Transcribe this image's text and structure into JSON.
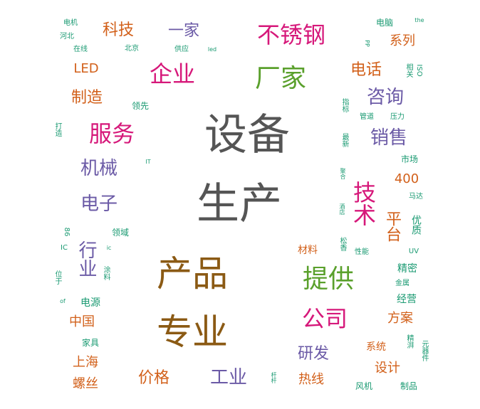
{
  "words": {
    "shebei": "设备",
    "shengchan": "生产",
    "chanpin": "产品",
    "zhuanye": "专业",
    "tigong": "提供",
    "changjia": "厂家",
    "buxiugang": "不锈钢",
    "qiye": "企业",
    "fuwu": "服务",
    "gongsi": "公司",
    "jishu": "技术",
    "xiaoshou": "销售",
    "jixie": "机械",
    "dianzi": "电子",
    "zixun": "咨询",
    "hangye": "行业",
    "yanfa": "研发",
    "gongye": "工业",
    "jiage": "价格",
    "keji": "科技",
    "yijia": "一家",
    "dianhua": "电话",
    "zhizao": "制造",
    "pingtai": "平台",
    "sheji": "设计",
    "rexian": "热线",
    "zhongguo": "中国",
    "shanghai": "上海",
    "luosi": "螺丝",
    "xilie": "系列",
    "xitong": "系统",
    "fangan": "方案",
    "jingying": "经营",
    "jingmi": "精密",
    "cailiao": "材料",
    "led_big": "LED",
    "n400": "400",
    "youzhi": "优质",
    "dianyuan": "电源",
    "lingxian": "领先",
    "lingyu": "领域",
    "jiaju": "家具",
    "shichang": "市场",
    "diannao": "电脑",
    "dianji": "电机",
    "hebei": "河北",
    "zaixian": "在线",
    "beijing": "北京",
    "gongying": "供应",
    "led_small": "led",
    "the": "the",
    "pp": "PP",
    "xiangguan": "相关",
    "iso": "ISO",
    "zhibiao": "指标",
    "guandao": "管道",
    "yali": "压力",
    "dazao": "打造",
    "zuixin": "最新",
    "it": "IT",
    "juhe": "聚合",
    "mada": "马达",
    "jiudian": "酒店",
    "n86": "86",
    "ic_upper": "IC",
    "ic_lower": "ic",
    "tuliao": "涂料",
    "weiyu": "位于",
    "of": "of",
    "songxiang": "松香",
    "xingneng": "性能",
    "uv": "UV",
    "jinshu": "金属",
    "jingpai": "精湃",
    "yuanqijian": "元器件",
    "fengji": "风机",
    "zhipin": "制品",
    "heigan": "杆杆"
  },
  "colors": {
    "gray": "#555555",
    "brown": "#8b5a14",
    "orange": "#d2601a",
    "magenta": "#d6187a",
    "purple": "#6b5aa6",
    "green": "#5aa02c",
    "teal": "#1a9a72"
  }
}
